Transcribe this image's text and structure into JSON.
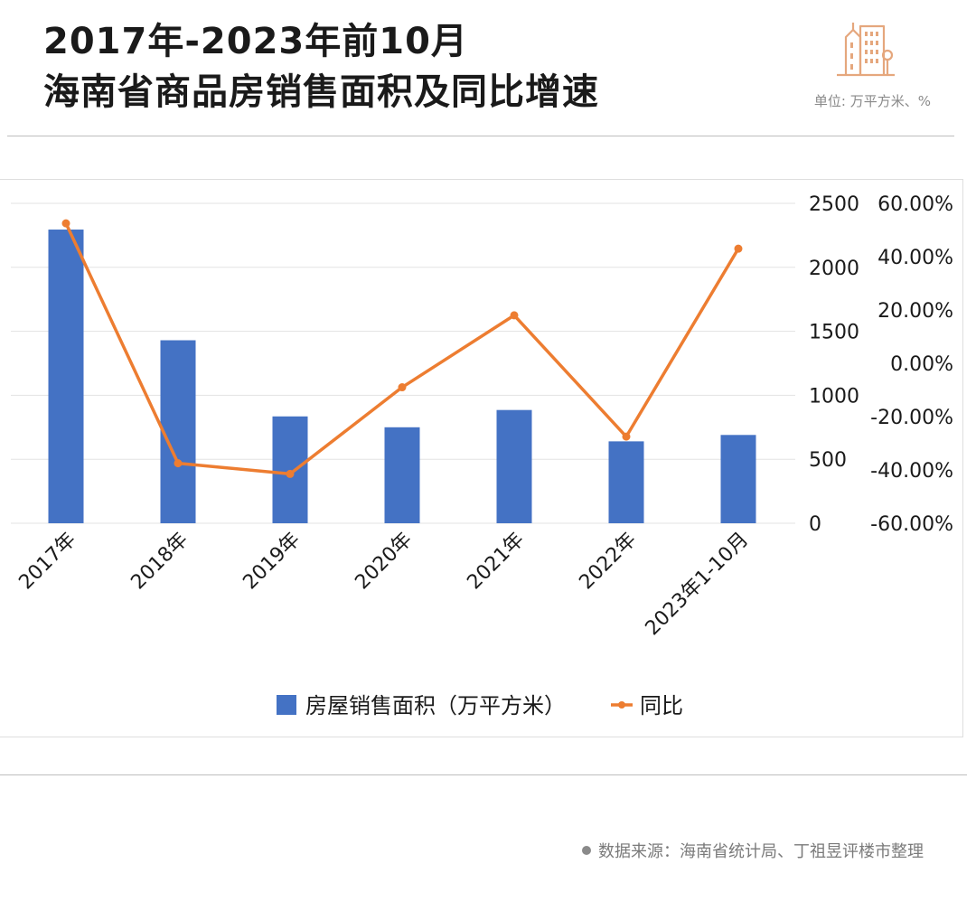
{
  "header": {
    "title_line1": "2017年-2023年前10月",
    "title_line2": "海南省商品房销售面积及同比增速",
    "unit": "单位: 万平方米、%"
  },
  "footer": {
    "source": "数据来源：海南省统计局、丁祖昱评楼市整理"
  },
  "colors": {
    "bar": "#4472c4",
    "line": "#ed7d31",
    "grid": "#e3e3e3",
    "icon": "#e5a77d"
  },
  "chart_data": {
    "type": "bar",
    "title": "",
    "categories": [
      "2017年",
      "2018年",
      "2019年",
      "2020年",
      "2021年",
      "2022年",
      "2023年1-10月"
    ],
    "series": [
      {
        "name": "房屋销售面积（万平方米）",
        "type": "bar",
        "axis": "left",
        "values": [
          2295,
          1430,
          835,
          750,
          885,
          640,
          690
        ]
      },
      {
        "name": "同比",
        "type": "line",
        "axis": "right",
        "values": [
          0.525,
          -0.375,
          -0.415,
          -0.09,
          0.18,
          -0.275,
          0.43
        ]
      }
    ],
    "y_left": {
      "min": 0,
      "max": 2500,
      "ticks": [
        "0",
        "500",
        "1000",
        "1500",
        "2000",
        "2500"
      ]
    },
    "y_right": {
      "min": -0.6,
      "max": 0.6,
      "ticks": [
        "-60.00%",
        "-40.00%",
        "-20.00%",
        "0.00%",
        "20.00%",
        "40.00%",
        "60.00%"
      ]
    },
    "grid": true,
    "legend": "bottom"
  }
}
